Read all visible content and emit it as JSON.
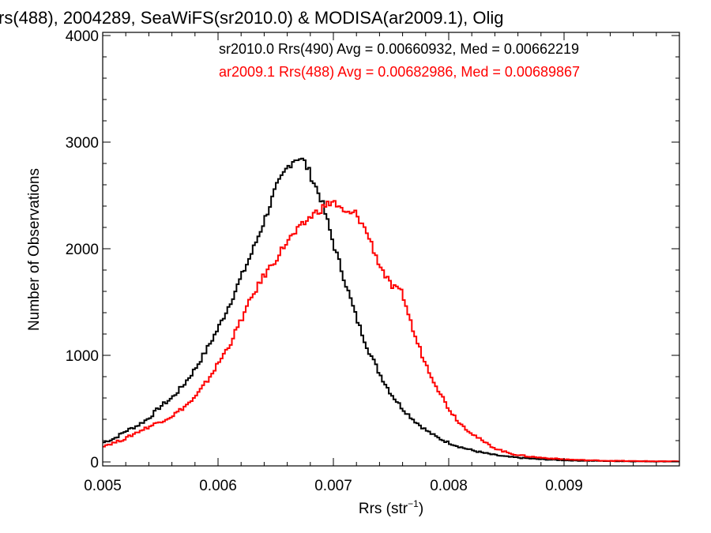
{
  "chart_data": {
    "type": "line",
    "title": "rs(488), 2004289, SeaWiFS(sr2010.0) & MODISA(ar2009.1), Olig",
    "xlabel": "Rrs (str",
    "xlabel_sup": "−1",
    "xlabel_close": ")",
    "ylabel": "Number of Observations",
    "xlim": [
      0.005,
      0.01
    ],
    "ylim": [
      0,
      4000
    ],
    "xticks": [
      {
        "value": 0.005,
        "label": "0.005"
      },
      {
        "value": 0.006,
        "label": "0.006"
      },
      {
        "value": 0.007,
        "label": "0.007"
      },
      {
        "value": 0.008,
        "label": "0.008"
      },
      {
        "value": 0.009,
        "label": "0.009"
      }
    ],
    "yticks": [
      {
        "value": 0,
        "label": "0"
      },
      {
        "value": 1000,
        "label": "1000"
      },
      {
        "value": 2000,
        "label": "2000"
      },
      {
        "value": 3000,
        "label": "3000"
      },
      {
        "value": 4000,
        "label": "4000"
      }
    ],
    "grid": false,
    "legend_position": "top-right",
    "series": [
      {
        "name": "sr2010.0 Rrs(490) Avg = 0.00660932, Med = 0.00662219",
        "color": "#000000",
        "x": [
          0.005,
          0.0051,
          0.0052,
          0.0053,
          0.0054,
          0.0055,
          0.0056,
          0.0057,
          0.0058,
          0.0059,
          0.006,
          0.0061,
          0.0062,
          0.0063,
          0.0064,
          0.0065,
          0.0066,
          0.00665,
          0.0067,
          0.00675,
          0.0068,
          0.0069,
          0.007,
          0.0071,
          0.0072,
          0.0073,
          0.0074,
          0.0075,
          0.0076,
          0.0077,
          0.0078,
          0.0079,
          0.008,
          0.0081,
          0.0082,
          0.0083,
          0.0084,
          0.0085,
          0.0086,
          0.0087,
          0.0088,
          0.0089,
          0.009,
          0.0091,
          0.0092,
          0.0094,
          0.0096,
          0.0098,
          0.01
        ],
        "y": [
          180,
          220,
          290,
          340,
          410,
          520,
          600,
          720,
          870,
          1050,
          1250,
          1480,
          1730,
          1980,
          2260,
          2560,
          2760,
          2830,
          2860,
          2810,
          2700,
          2450,
          2050,
          1700,
          1350,
          1060,
          830,
          640,
          500,
          390,
          300,
          230,
          180,
          140,
          110,
          85,
          65,
          50,
          40,
          32,
          25,
          20,
          16,
          13,
          11,
          8,
          6,
          5,
          4
        ]
      },
      {
        "name": "ar2009.1 Rrs(488) Avg = 0.00682986, Med = 0.00689867",
        "color": "#ff0000",
        "x": [
          0.005,
          0.0051,
          0.0052,
          0.0053,
          0.0054,
          0.0055,
          0.0056,
          0.0057,
          0.0058,
          0.0059,
          0.006,
          0.0061,
          0.0062,
          0.0063,
          0.0064,
          0.0065,
          0.0066,
          0.0067,
          0.0068,
          0.0069,
          0.007,
          0.00705,
          0.0071,
          0.0072,
          0.0073,
          0.0074,
          0.0075,
          0.0076,
          0.0077,
          0.0078,
          0.0079,
          0.008,
          0.0081,
          0.0082,
          0.0083,
          0.0084,
          0.0085,
          0.0086,
          0.0087,
          0.0088,
          0.0089,
          0.009,
          0.0091,
          0.0092,
          0.0094,
          0.0096,
          0.0098,
          0.01
        ],
        "y": [
          150,
          180,
          220,
          280,
          330,
          380,
          430,
          510,
          600,
          750,
          920,
          1100,
          1330,
          1560,
          1750,
          1900,
          2070,
          2180,
          2300,
          2380,
          2450,
          2380,
          2330,
          2330,
          2130,
          1850,
          1650,
          1580,
          1200,
          920,
          700,
          500,
          360,
          270,
          190,
          130,
          90,
          65,
          50,
          40,
          32,
          25,
          20,
          16,
          11,
          8,
          6,
          5
        ]
      }
    ]
  }
}
